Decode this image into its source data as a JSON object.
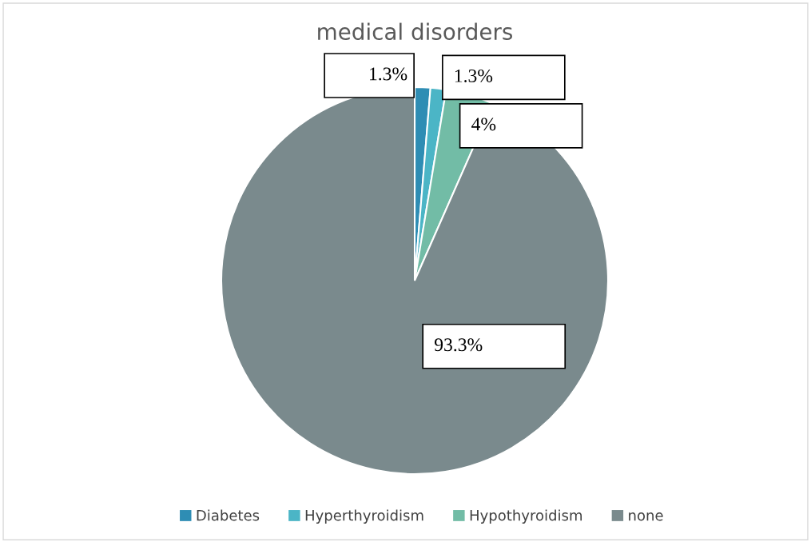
{
  "chart_data": {
    "type": "pie",
    "title": "medical disorders",
    "categories": [
      "Diabetes",
      "Hyperthyroidism",
      "Hypothyroidism",
      "none"
    ],
    "values": [
      1.3,
      1.3,
      4,
      93.3
    ],
    "colors": [
      "#2e8db4",
      "#4bb5c6",
      "#72bca6",
      "#7a8a8d"
    ],
    "value_labels": [
      "1.3%",
      "1.3%",
      "4%",
      "93.3%"
    ],
    "legend": "bottom"
  }
}
